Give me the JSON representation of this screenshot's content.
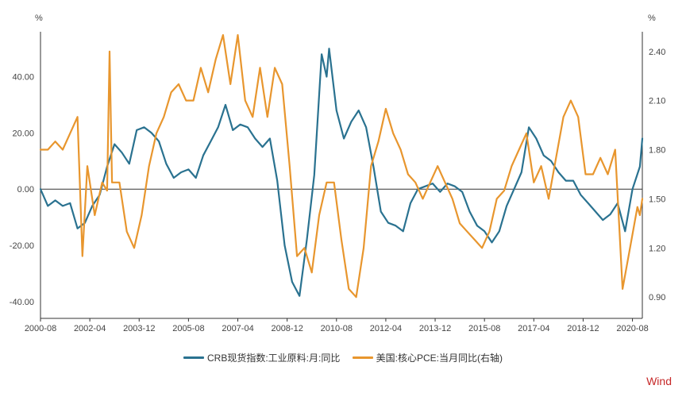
{
  "chart_data": {
    "type": "line",
    "left_axis": {
      "unit": "%",
      "ticks": [
        "40.00",
        "20.00",
        "0.00",
        "-20.00",
        "-40.00"
      ],
      "tick_values": [
        40,
        20,
        0,
        -20,
        -40
      ],
      "range": [
        -46,
        56
      ]
    },
    "right_axis": {
      "unit": "%",
      "ticks": [
        "2.40",
        "2.10",
        "1.80",
        "1.50",
        "1.20",
        "0.90"
      ],
      "tick_values": [
        2.4,
        2.1,
        1.8,
        1.5,
        1.2,
        0.9
      ],
      "range": [
        0.77,
        2.52
      ]
    },
    "x_ticks": [
      "2000-08",
      "2002-04",
      "2003-12",
      "2005-08",
      "2007-04",
      "2008-12",
      "2010-08",
      "2012-04",
      "2013-12",
      "2015-08",
      "2017-04",
      "2018-12",
      "2020-08"
    ],
    "x_range": [
      "2000-08",
      "2020-12"
    ],
    "grid": false,
    "legend_position": "bottom",
    "series": [
      {
        "name": "CRB现货指数:工业原料:月:同比",
        "axis": "left",
        "color": "#2a7290",
        "points": [
          [
            "2000-08",
            0
          ],
          [
            "2000-11",
            -6
          ],
          [
            "2001-02",
            -4
          ],
          [
            "2001-05",
            -6
          ],
          [
            "2001-08",
            -5
          ],
          [
            "2001-11",
            -14
          ],
          [
            "2002-02",
            -12
          ],
          [
            "2002-05",
            -6
          ],
          [
            "2002-08",
            -2
          ],
          [
            "2002-11",
            8
          ],
          [
            "2003-02",
            16
          ],
          [
            "2003-05",
            13
          ],
          [
            "2003-08",
            9
          ],
          [
            "2003-11",
            21
          ],
          [
            "2004-02",
            22
          ],
          [
            "2004-05",
            20
          ],
          [
            "2004-08",
            17
          ],
          [
            "2004-11",
            9
          ],
          [
            "2005-02",
            4
          ],
          [
            "2005-05",
            6
          ],
          [
            "2005-08",
            7
          ],
          [
            "2005-11",
            4
          ],
          [
            "2006-02",
            12
          ],
          [
            "2006-05",
            17
          ],
          [
            "2006-08",
            22
          ],
          [
            "2006-11",
            30
          ],
          [
            "2007-02",
            21
          ],
          [
            "2007-05",
            23
          ],
          [
            "2007-08",
            22
          ],
          [
            "2007-11",
            18
          ],
          [
            "2008-02",
            15
          ],
          [
            "2008-05",
            18
          ],
          [
            "2008-08",
            3
          ],
          [
            "2008-11",
            -20
          ],
          [
            "2009-02",
            -33
          ],
          [
            "2009-05",
            -38
          ],
          [
            "2009-08",
            -18
          ],
          [
            "2009-11",
            5
          ],
          [
            "2010-02",
            48
          ],
          [
            "2010-04",
            40
          ],
          [
            "2010-05",
            50
          ],
          [
            "2010-08",
            28
          ],
          [
            "2010-11",
            18
          ],
          [
            "2011-02",
            24
          ],
          [
            "2011-05",
            28
          ],
          [
            "2011-08",
            22
          ],
          [
            "2011-11",
            8
          ],
          [
            "2012-02",
            -8
          ],
          [
            "2012-05",
            -12
          ],
          [
            "2012-08",
            -13
          ],
          [
            "2012-11",
            -15
          ],
          [
            "2013-02",
            -5
          ],
          [
            "2013-05",
            0
          ],
          [
            "2013-08",
            1
          ],
          [
            "2013-11",
            2
          ],
          [
            "2014-02",
            -1
          ],
          [
            "2014-05",
            2
          ],
          [
            "2014-08",
            1
          ],
          [
            "2014-11",
            -1
          ],
          [
            "2015-02",
            -8
          ],
          [
            "2015-05",
            -13
          ],
          [
            "2015-08",
            -15
          ],
          [
            "2015-11",
            -19
          ],
          [
            "2016-02",
            -15
          ],
          [
            "2016-05",
            -6
          ],
          [
            "2016-08",
            0
          ],
          [
            "2016-11",
            6
          ],
          [
            "2017-02",
            22
          ],
          [
            "2017-05",
            18
          ],
          [
            "2017-08",
            12
          ],
          [
            "2017-11",
            10
          ],
          [
            "2018-02",
            6
          ],
          [
            "2018-05",
            3
          ],
          [
            "2018-08",
            3
          ],
          [
            "2018-11",
            -2
          ],
          [
            "2019-02",
            -5
          ],
          [
            "2019-05",
            -8
          ],
          [
            "2019-08",
            -11
          ],
          [
            "2019-11",
            -9
          ],
          [
            "2020-02",
            -5
          ],
          [
            "2020-05",
            -15
          ],
          [
            "2020-08",
            0
          ],
          [
            "2020-11",
            8
          ],
          [
            "2020-12",
            18
          ]
        ]
      },
      {
        "name": "美国:核心PCE:当月同比(右轴)",
        "axis": "right",
        "color": "#e8962e",
        "points": [
          [
            "2000-08",
            1.8
          ],
          [
            "2000-11",
            1.8
          ],
          [
            "2001-02",
            1.85
          ],
          [
            "2001-05",
            1.8
          ],
          [
            "2001-08",
            1.9
          ],
          [
            "2001-11",
            2.0
          ],
          [
            "2002-01",
            1.15
          ],
          [
            "2002-03",
            1.7
          ],
          [
            "2002-06",
            1.4
          ],
          [
            "2002-09",
            1.6
          ],
          [
            "2002-11",
            1.55
          ],
          [
            "2002-12",
            2.4
          ],
          [
            "2003-01",
            1.6
          ],
          [
            "2003-04",
            1.6
          ],
          [
            "2003-07",
            1.3
          ],
          [
            "2003-10",
            1.2
          ],
          [
            "2004-01",
            1.4
          ],
          [
            "2004-04",
            1.7
          ],
          [
            "2004-07",
            1.9
          ],
          [
            "2004-10",
            2.0
          ],
          [
            "2005-01",
            2.15
          ],
          [
            "2005-04",
            2.2
          ],
          [
            "2005-07",
            2.1
          ],
          [
            "2005-10",
            2.1
          ],
          [
            "2006-01",
            2.3
          ],
          [
            "2006-04",
            2.15
          ],
          [
            "2006-07",
            2.35
          ],
          [
            "2006-10",
            2.5
          ],
          [
            "2007-01",
            2.2
          ],
          [
            "2007-04",
            2.5
          ],
          [
            "2007-07",
            2.1
          ],
          [
            "2007-10",
            2.0
          ],
          [
            "2008-01",
            2.3
          ],
          [
            "2008-04",
            2.0
          ],
          [
            "2008-07",
            2.3
          ],
          [
            "2008-10",
            2.2
          ],
          [
            "2009-01",
            1.7
          ],
          [
            "2009-04",
            1.15
          ],
          [
            "2009-07",
            1.2
          ],
          [
            "2009-10",
            1.05
          ],
          [
            "2010-01",
            1.4
          ],
          [
            "2010-04",
            1.6
          ],
          [
            "2010-07",
            1.6
          ],
          [
            "2010-10",
            1.25
          ],
          [
            "2011-01",
            0.95
          ],
          [
            "2011-04",
            0.9
          ],
          [
            "2011-07",
            1.2
          ],
          [
            "2011-10",
            1.7
          ],
          [
            "2012-01",
            1.85
          ],
          [
            "2012-04",
            2.05
          ],
          [
            "2012-07",
            1.9
          ],
          [
            "2012-10",
            1.8
          ],
          [
            "2013-01",
            1.65
          ],
          [
            "2013-04",
            1.6
          ],
          [
            "2013-07",
            1.5
          ],
          [
            "2013-10",
            1.6
          ],
          [
            "2014-01",
            1.7
          ],
          [
            "2014-04",
            1.6
          ],
          [
            "2014-07",
            1.5
          ],
          [
            "2014-10",
            1.35
          ],
          [
            "2015-01",
            1.3
          ],
          [
            "2015-04",
            1.25
          ],
          [
            "2015-07",
            1.2
          ],
          [
            "2015-10",
            1.3
          ],
          [
            "2016-01",
            1.5
          ],
          [
            "2016-04",
            1.55
          ],
          [
            "2016-07",
            1.7
          ],
          [
            "2016-10",
            1.8
          ],
          [
            "2017-01",
            1.9
          ],
          [
            "2017-04",
            1.6
          ],
          [
            "2017-07",
            1.7
          ],
          [
            "2017-10",
            1.5
          ],
          [
            "2018-01",
            1.75
          ],
          [
            "2018-04",
            2.0
          ],
          [
            "2018-07",
            2.1
          ],
          [
            "2018-10",
            2.0
          ],
          [
            "2019-01",
            1.65
          ],
          [
            "2019-04",
            1.65
          ],
          [
            "2019-07",
            1.75
          ],
          [
            "2019-10",
            1.65
          ],
          [
            "2020-01",
            1.8
          ],
          [
            "2020-04",
            0.95
          ],
          [
            "2020-07",
            1.2
          ],
          [
            "2020-10",
            1.45
          ],
          [
            "2020-11",
            1.4
          ],
          [
            "2020-12",
            1.5
          ]
        ]
      }
    ]
  },
  "brand": {
    "label": "Wind",
    "color": "#c62828"
  }
}
